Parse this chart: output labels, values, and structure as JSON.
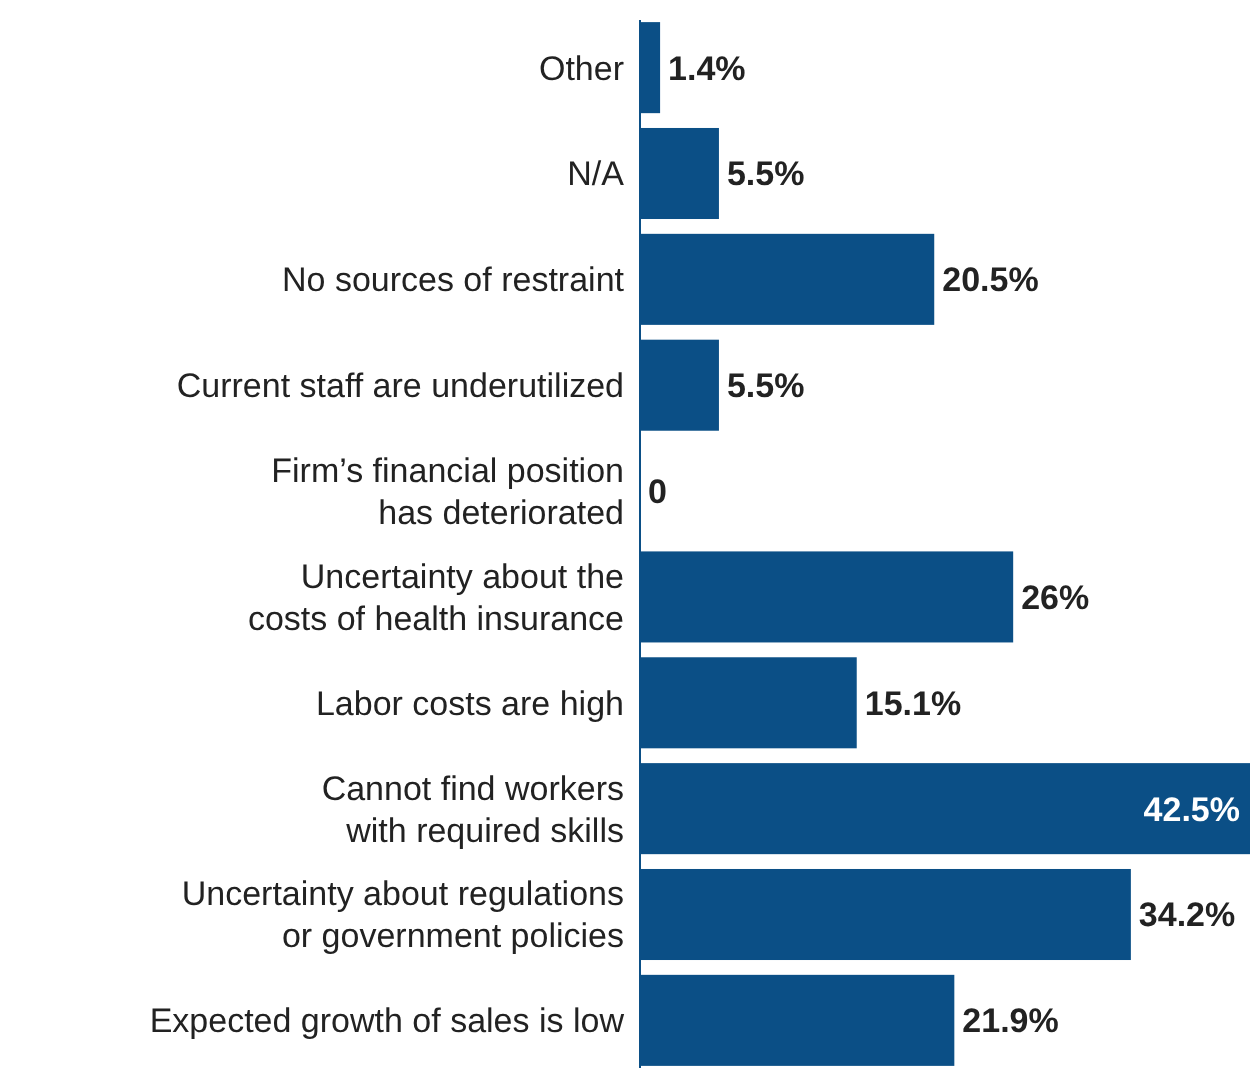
{
  "chart_data": {
    "type": "bar",
    "orientation": "horizontal",
    "categories": [
      "Other",
      "N/A",
      "No sources of restraint",
      "Current staff are underutilized",
      "Firm’s financial position\nhas deteriorated",
      "Uncertainty about the\ncosts of health insurance",
      "Labor costs are high",
      "Cannot find workers\nwith required skills",
      "Uncertainty about regulations\nor government policies",
      "Expected growth of sales is low"
    ],
    "values": [
      1.4,
      5.5,
      20.5,
      5.5,
      0,
      26,
      15.1,
      42.5,
      34.2,
      21.9
    ],
    "value_labels": [
      "1.4%",
      "5.5%",
      "20.5%",
      "5.5%",
      "0",
      "26%",
      "15.1%",
      "42.5%",
      "34.2%",
      "21.9%"
    ],
    "color": "#0b4f86"
  }
}
